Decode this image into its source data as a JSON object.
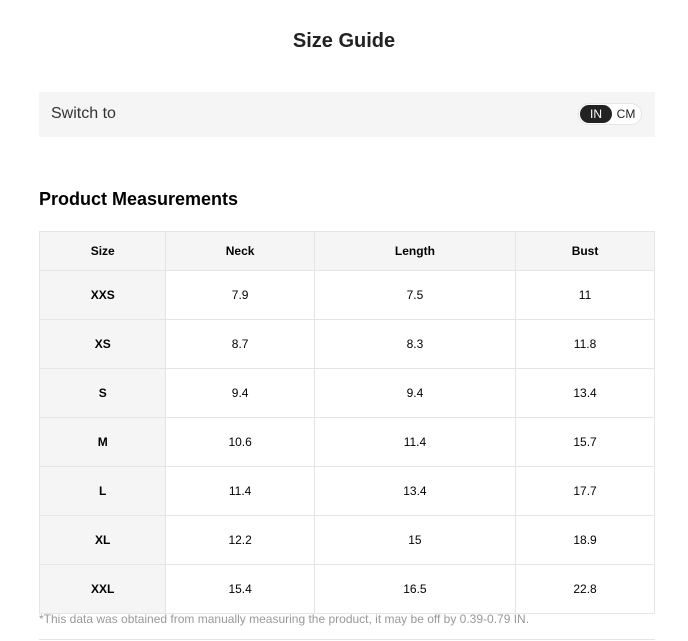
{
  "title": "Size Guide",
  "switch": {
    "label": "Switch to",
    "options": [
      "IN",
      "CM"
    ],
    "selected": "IN"
  },
  "section_title": "Product Measurements",
  "table": {
    "headers": [
      "Size",
      "Neck",
      "Length",
      "Bust"
    ],
    "rows": [
      [
        "XXS",
        "7.9",
        "7.5",
        "11"
      ],
      [
        "XS",
        "8.7",
        "8.3",
        "11.8"
      ],
      [
        "S",
        "9.4",
        "9.4",
        "13.4"
      ],
      [
        "M",
        "10.6",
        "11.4",
        "15.7"
      ],
      [
        "L",
        "11.4",
        "13.4",
        "17.7"
      ],
      [
        "XL",
        "12.2",
        "15",
        "18.9"
      ],
      [
        "XXL",
        "15.4",
        "16.5",
        "22.8"
      ]
    ]
  },
  "note": "*This data was obtained from manually measuring the product, it may be off by 0.39-0.79 IN."
}
